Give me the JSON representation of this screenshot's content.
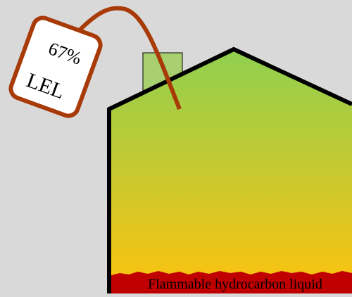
{
  "tag": {
    "reading": "67%",
    "unit": "LEL"
  },
  "liquid": {
    "label": "Flammable hydrocarbon liquid"
  },
  "colors": {
    "background": "#d9d9d9",
    "vapor_top": "#8fd050",
    "vapor_bottom": "#ffc20e",
    "liquid": "#c00000",
    "outline": "#000000",
    "vent_pipe": "#a8d070",
    "probe_cable": "#a83a08"
  }
}
